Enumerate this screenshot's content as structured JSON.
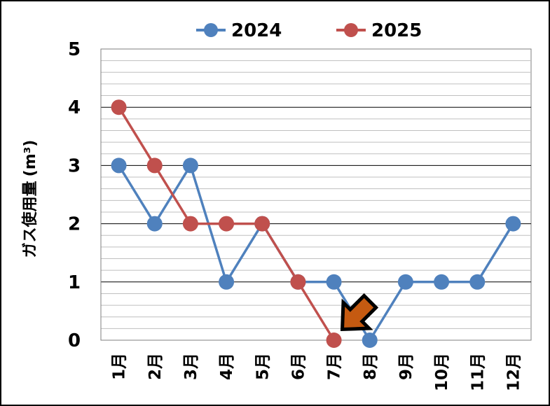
{
  "chart_data": {
    "type": "line",
    "title": "",
    "xlabel": "",
    "ylabel": "ガス使用量",
    "ylabel_unit": "(m³)",
    "categories": [
      "1月",
      "2月",
      "3月",
      "4月",
      "5月",
      "6月",
      "7月",
      "8月",
      "9月",
      "10月",
      "11月",
      "12月"
    ],
    "series": [
      {
        "name": "2024",
        "color": "#4F81BD",
        "values": [
          3,
          2,
          3,
          1,
          2,
          1,
          1,
          0,
          1,
          1,
          1,
          2
        ]
      },
      {
        "name": "2025",
        "color": "#C0504D",
        "values": [
          4,
          3,
          2,
          2,
          2,
          1,
          0,
          null,
          null,
          null,
          null,
          null
        ]
      }
    ],
    "ylim": [
      0,
      5
    ],
    "yticks": [
      "0",
      "1",
      "2",
      "3",
      "4",
      "5"
    ],
    "grid": {
      "major": true,
      "minor": true
    },
    "legend": "top-center",
    "annotation": {
      "type": "arrow",
      "icon": "down-left-arrow-icon",
      "points_to": "7月",
      "color": "#C55A11"
    }
  }
}
